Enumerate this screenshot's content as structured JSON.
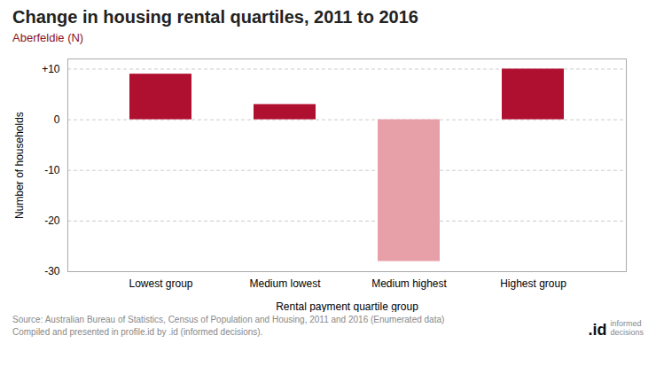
{
  "chart_data": {
    "type": "bar",
    "title": "Change in housing rental quartiles, 2011 to 2016",
    "subtitle": "Aberfeldie (N)",
    "categories": [
      "Lowest group",
      "Medium lowest",
      "Medium highest",
      "Highest group"
    ],
    "values": [
      9,
      3,
      -28,
      10
    ],
    "colors": [
      "#B01030",
      "#B01030",
      "#E8A0A8",
      "#B01030"
    ],
    "xlabel": "Rental payment quartile group",
    "ylabel": "Number of households",
    "ylim": [
      -30,
      12
    ],
    "yticks": [
      -30,
      -20,
      -10,
      0,
      {
        "value": 10,
        "label": "+10"
      }
    ],
    "grid": true,
    "source": "Source: Australian Bureau of Statistics, Census of Population and Housing, 2011 and 2016 (Enumerated data)\nCompiled and presented in profile.id by .id (informed decisions).",
    "annotations": [
      ".id",
      "informed\ndecisions"
    ]
  }
}
